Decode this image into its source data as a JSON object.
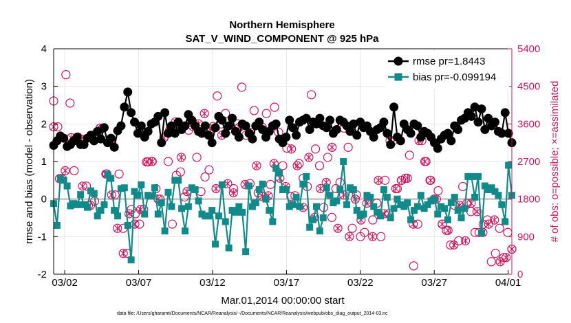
{
  "chart_data": {
    "type": "line",
    "title": "Northern Hemisphere",
    "subtitle": "SAT_V_WIND_COMPONENT @ 925 hPa",
    "xlabel": "Mar.01,2014 00:00:00 start",
    "ylabel_left": "rmse and bias (model - observation)",
    "ylabel_right": "# of obs: o=possible; ×=assimilated",
    "x_tick_labels": [
      "03/02",
      "03/07",
      "03/12",
      "03/17",
      "03/22",
      "03/27",
      "04/01"
    ],
    "x_tick_days": [
      1,
      6,
      11,
      16,
      21,
      26,
      31
    ],
    "x_range_days": [
      0.25,
      31.25
    ],
    "ylim_left": [
      -2,
      4
    ],
    "y_ticks_left": [
      "-2",
      "-1",
      "0",
      "1",
      "2",
      "3",
      "4"
    ],
    "ylim_right": [
      0,
      5400
    ],
    "y_ticks_right": [
      "0",
      "900",
      "1800",
      "2700",
      "3600",
      "4500",
      "5400"
    ],
    "grid": true,
    "legend_position": "top-right",
    "colors": {
      "rmse": "#000000",
      "bias": "#138a8a",
      "obs": "#c8175c",
      "zero_line": "#b4b4b4"
    },
    "step_days": 0.25,
    "start_day": 0.25,
    "series": [
      {
        "name": "rmse",
        "label": "rmse pr=1.8443",
        "values": [
          1.43,
          1.55,
          1.68,
          1.62,
          1.4,
          1.45,
          1.55,
          1.65,
          1.45,
          1.45,
          1.62,
          1.7,
          1.55,
          1.8,
          1.6,
          1.9,
          1.5,
          1.62,
          1.38,
          1.82,
          1.95,
          2.45,
          2.85,
          2.3,
          2.05,
          1.75,
          1.95,
          1.65,
          1.8,
          2.0,
          2.05,
          2.2,
          1.5,
          2.3,
          1.75,
          1.95,
          1.75,
          2.05,
          1.85,
          1.95,
          2.25,
          2.1,
          1.95,
          1.8,
          1.75,
          1.95,
          1.7,
          1.5,
          1.9,
          2.2,
          2.1,
          1.75,
          1.95,
          2.15,
          1.8,
          1.65,
          2.0,
          1.95,
          1.75,
          1.6,
          1.95,
          2.05,
          1.85,
          1.65,
          1.8,
          1.95,
          2.0,
          1.6,
          1.5,
          1.65,
          2.1,
          1.9,
          1.7,
          2.05,
          2.1,
          2.15,
          1.85,
          2.05,
          2.0,
          2.15,
          1.95,
          1.9,
          2.1,
          1.75,
          1.85,
          2.1,
          2.05,
          1.95,
          1.8,
          2.0,
          1.7,
          2.05,
          1.9,
          1.95,
          1.8,
          1.65,
          1.85,
          1.9,
          2.05,
          1.75,
          1.45,
          2.45,
          1.65,
          1.55,
          2.0,
          1.85,
          1.75,
          2.0,
          1.95,
          1.65,
          1.8,
          1.75,
          1.65,
          1.5,
          1.35,
          1.6,
          1.7,
          1.75,
          1.55,
          1.95,
          1.85,
          2.1,
          2.15,
          2.3,
          2.2,
          2.45,
          2.05,
          2.4,
          1.85,
          2.15,
          1.95,
          2.05,
          1.8,
          1.75,
          2.3,
          1.75,
          1.5
        ]
      },
      {
        "name": "bias",
        "label": "bias pr=-0.099194",
        "values": [
          -0.12,
          -0.7,
          0.55,
          0.5,
          0.35,
          -0.18,
          -0.12,
          -0.15,
          0.12,
          -0.15,
          -0.22,
          0.22,
          0.15,
          -0.45,
          -0.3,
          -0.15,
          0.65,
          0.55,
          -0.3,
          -0.45,
          0.28,
          0.3,
          -0.7,
          -1.62,
          0.2,
          0.1,
          0.38,
          -0.4,
          0.1,
          0.08,
          0.3,
          -0.4,
          -0.1,
          -0.85,
          0.18,
          -0.2,
          0.5,
          0.5,
          -0.25,
          -0.85,
          -0.2,
          0.3,
          0.25,
          -0.05,
          -0.4,
          -0.45,
          -0.45,
          -0.3,
          -1.2,
          -0.45,
          0.38,
          -0.6,
          -1.3,
          -0.3,
          -0.35,
          -0.2,
          -0.35,
          -1.4,
          0.35,
          -0.2,
          -0.1,
          0.25,
          0.4,
          0.0,
          -0.3,
          -0.6,
          0.82,
          0.7,
          0.25,
          0.25,
          -0.2,
          -0.15,
          0.05,
          -0.2,
          0.4,
          0.6,
          -0.75,
          -0.55,
          -0.2,
          -0.85,
          -0.5,
          0.3,
          0.1,
          -0.1,
          -0.05,
          0.25,
          1.0,
          -0.15,
          0.3,
          0.25,
          -0.3,
          -0.45,
          -0.4,
          0.1,
          0.05,
          -0.2,
          -0.35,
          -0.45,
          0.25,
          0.05,
          -0.5,
          -0.25,
          0.0,
          -0.15,
          -0.2,
          -0.1,
          -0.55,
          -0.3,
          -0.2,
          0.1,
          -0.25,
          -0.15,
          -0.05,
          0.0,
          -0.4,
          -0.2,
          -0.25,
          -0.55,
          -0.1,
          0.05,
          -0.3,
          -0.5,
          -0.25,
          0.6,
          0.6,
          0.05,
          0.6,
          -0.9,
          0.35,
          0.25,
          0.3,
          0.2,
          0.1,
          -0.15,
          -0.6,
          0.9,
          0.1
        ]
      },
      {
        "name": "possible",
        "label": "o=possible",
        "values": [
          4150,
          3530,
          2290,
          4780,
          4100,
          2480,
          3280,
          3230,
          2110,
          1650,
          1750,
          3340,
          3500,
          2400,
          3210,
          1900,
          2400,
          1100,
          500,
          1550,
          1450,
          1200,
          1550,
          2690,
          2700,
          2050,
          1800,
          3270,
          2700,
          1200,
          2370,
          2450,
          1850,
          3450,
          3650,
          2800,
          1980,
          2330,
          2500,
          3540,
          4270,
          3600,
          3850,
          3480,
          2050,
          3600,
          4480,
          3330,
          2170,
          3920,
          1950,
          3520,
          3850,
          2150,
          4000,
          3400,
          2600,
          3020,
          1860,
          1880,
          2650,
          2300,
          2100,
          4300,
          3000,
          2600,
          1600,
          2800,
          1360,
          2050,
          2200,
          3500,
          3040,
          1100,
          1900,
          900,
          1000,
          1800,
          1300,
          1700,
          900,
          2250,
          1450,
          3200,
          2050,
          2250,
          2300,
          2850,
          200,
          1200,
          3200,
          2700,
          2250,
          1800,
          2000,
          1200,
          1050,
          700,
          1650,
          800,
          2100,
          1700,
          1500,
          1000,
          1000,
          1200,
          1300,
          300,
          500,
          1100,
          400,
          1000,
          600
        ]
      },
      {
        "name": "assimilated",
        "label": "×=assimilated",
        "values": [
          3530,
          2290,
          2480,
          3270,
          3230,
          2110,
          1650,
          3340,
          3500,
          2400,
          1900,
          1100,
          500,
          1450,
          1200,
          1550,
          2690,
          2700,
          1800,
          3270,
          3450,
          3650,
          2800,
          1980,
          3540,
          3600,
          3850,
          3480,
          2050,
          3330,
          2170,
          1950,
          3520,
          2150,
          3400,
          2600,
          1860,
          1880,
          2650,
          2300,
          2100,
          3000,
          2600,
          1600,
          2800,
          1360,
          2050,
          2200,
          3040,
          1100,
          1900,
          900,
          1800,
          1300,
          1700,
          900,
          2250,
          1450,
          3200,
          2050,
          2250,
          2300,
          1200,
          3200,
          2700,
          2250,
          1800,
          1200,
          1050,
          700,
          1650,
          800,
          1700,
          1500,
          1000,
          1200,
          1300,
          300,
          400,
          600
        ]
      }
    ]
  },
  "footer": "data file: /Users/gharamti/Documents/NCAR/Reanalysis/~/Documents/NCAR/Reanalysis/webpub/obs_diag_output_2014-03.nc"
}
